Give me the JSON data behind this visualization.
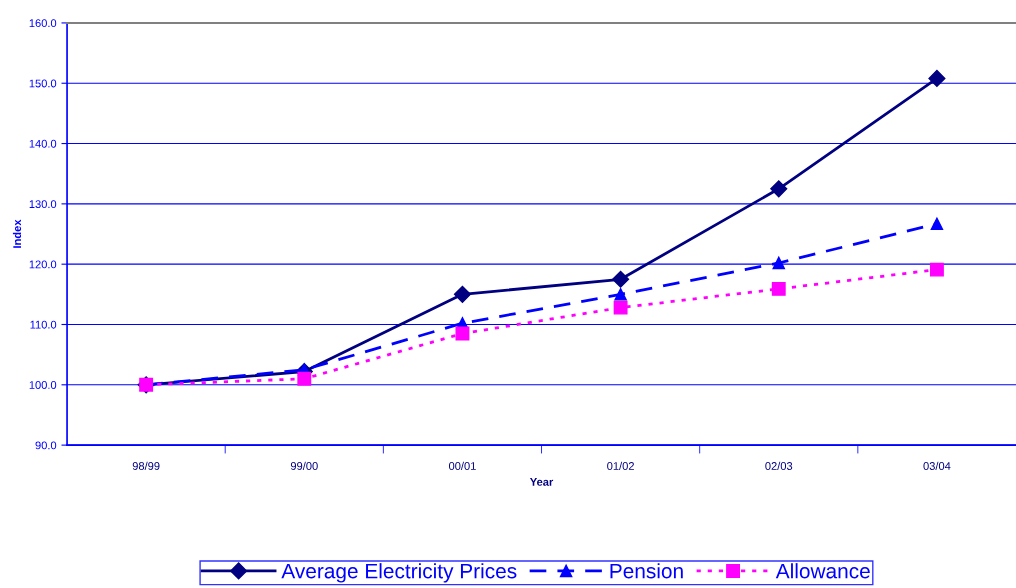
{
  "chart_data": {
    "type": "line",
    "xlabel": "Year",
    "ylabel": "Index",
    "categories": [
      "98/99",
      "99/00",
      "00/01",
      "01/02",
      "02/03",
      "03/04"
    ],
    "series": [
      {
        "name": "Average Electricity Prices",
        "color": "#000080",
        "marker": "diamond",
        "line_style": "solid",
        "values": [
          100.0,
          102.2,
          115.0,
          117.5,
          132.5,
          150.8
        ]
      },
      {
        "name": "Pension",
        "color": "#0000ff",
        "marker": "triangle",
        "line_style": "dashed",
        "values": [
          100.0,
          102.5,
          110.2,
          115.0,
          120.2,
          126.7
        ]
      },
      {
        "name": "Allowance",
        "color": "#ff00ff",
        "marker": "square",
        "line_style": "dotted",
        "values": [
          100.0,
          101.0,
          108.5,
          112.8,
          115.9,
          119.1
        ]
      }
    ],
    "ylim": [
      90,
      160
    ],
    "yticks": [
      {
        "value": 90,
        "label": "90.0"
      },
      {
        "value": 100,
        "label": "100.0"
      },
      {
        "value": 110,
        "label": "110.0"
      },
      {
        "value": 120,
        "label": "120.0"
      },
      {
        "value": 130,
        "label": "130.0"
      },
      {
        "value": 140,
        "label": "140.0"
      },
      {
        "value": 150,
        "label": "150.0"
      },
      {
        "value": 160,
        "label": "160.0"
      }
    ],
    "grid": "y",
    "legend": "bottom"
  }
}
